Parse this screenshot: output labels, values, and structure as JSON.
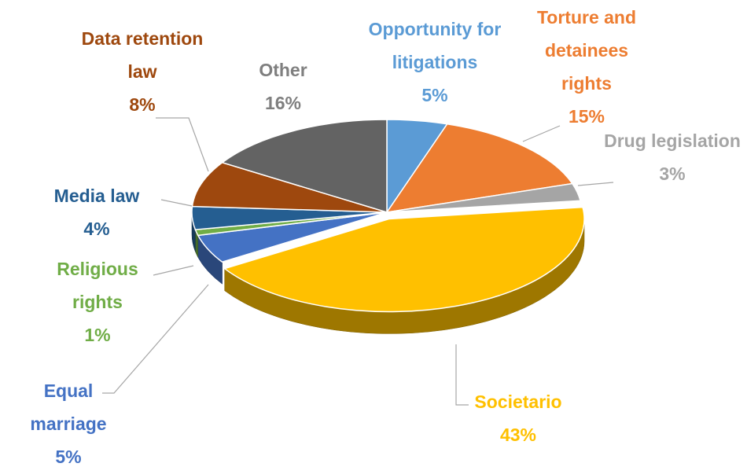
{
  "chart_data": {
    "type": "pie",
    "categories": [
      "Opportunity for litigations",
      "Torture and detainees rights",
      "Drug legislation",
      "Societario",
      "Equal marriage",
      "Religious rights",
      "Media law",
      "Data retention law",
      "Other"
    ],
    "values": [
      5,
      15,
      3,
      43,
      5,
      1,
      4,
      8,
      16
    ],
    "value_labels": [
      "5%",
      "15%",
      "3%",
      "43%",
      "5%",
      "1%",
      "4%",
      "8%",
      "16%"
    ],
    "colors": [
      "#5b9bd5",
      "#ed7d31",
      "#a5a5a5",
      "#ffc000",
      "#4472c4",
      "#70ad47",
      "#255e91",
      "#9e480e",
      "#636363"
    ]
  }
}
